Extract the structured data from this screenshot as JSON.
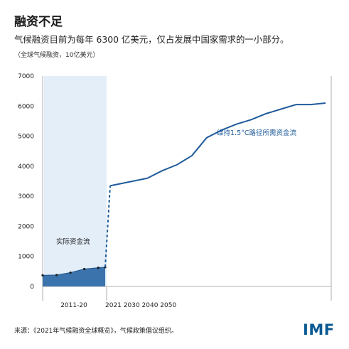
{
  "title": "融资不足",
  "subtitle": "气候融资目前为每年 6300 亿美元，仅占发展中国家需求的一小部分。",
  "unit_note": "（全球气候融资，10亿美元）",
  "source": "来源：《2021年气候融资全球概览》，气候政策倡议组织。",
  "logo_text": "IMF",
  "colors": {
    "actual_fill": "#3b73ad",
    "actual_shade": "#e3eef9",
    "needs_line": "#1f5b9a",
    "axis": "#999999",
    "grid": "#e6e6e6"
  },
  "chart_data": {
    "type": "line",
    "title": "",
    "xlabel": "",
    "ylabel": "",
    "ylim": [
      0,
      7000
    ],
    "yticks": [
      0,
      1000,
      2000,
      3000,
      4000,
      5000,
      6000,
      7000
    ],
    "x_group_labels": [
      "2011-20",
      "2021 2030 2040 2050"
    ],
    "grid": false,
    "series": [
      {
        "name": "实际资金流",
        "style": "area",
        "x": [
          2011,
          2013,
          2015,
          2017,
          2019,
          2020
        ],
        "values": [
          370,
          380,
          460,
          580,
          620,
          640
        ]
      },
      {
        "name": "维持1.5°C路径所需资金流",
        "style": "line",
        "x": [
          2021,
          2023,
          2026,
          2028,
          2030,
          2032,
          2034,
          2036,
          2038,
          2040,
          2042,
          2044,
          2046,
          2048,
          2050
        ],
        "values": [
          3350,
          3450,
          3600,
          3850,
          4050,
          4350,
          4950,
          5200,
          5400,
          5550,
          5750,
          5900,
          6050,
          6050,
          6100
        ]
      }
    ],
    "annotations": [
      "实际资金流",
      "维持1.5°C路径所需资金流"
    ]
  }
}
